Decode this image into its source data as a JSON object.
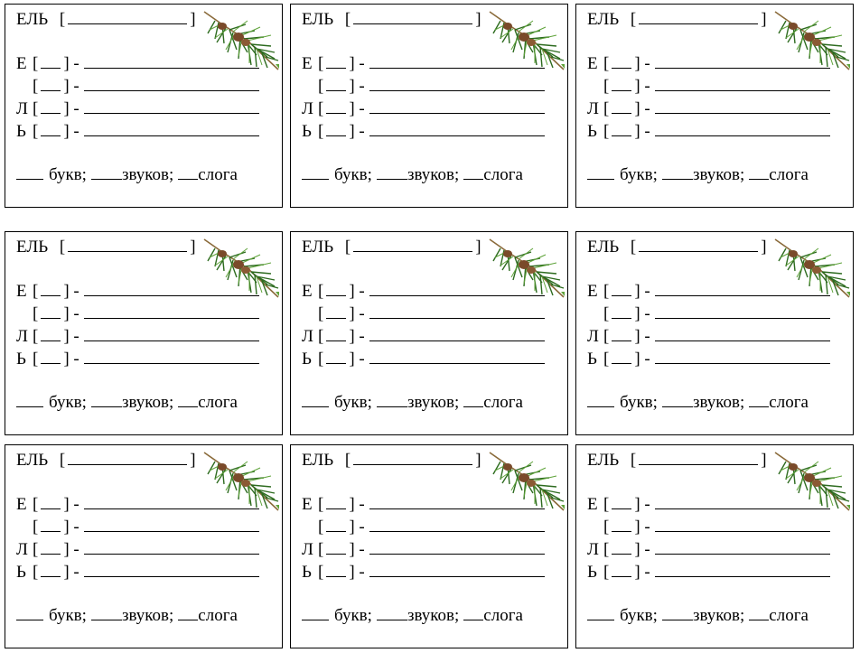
{
  "card": {
    "word": "ЕЛЬ",
    "bracket_open": "[",
    "bracket_close": "]",
    "letters": [
      "Е",
      "",
      "Л",
      "Ь"
    ],
    "sound_open": "[",
    "sound_close": "]",
    "dash": "-",
    "letters_label": "букв;",
    "sounds_label": "звуков;",
    "syllables_label": "слога"
  },
  "colors": {
    "needle_dark": "#2d6b1f",
    "needle_light": "#5fa33a",
    "cone": "#7a4a2a",
    "twig": "#8a6a3a"
  },
  "icons": [
    "pine-branch-icon"
  ]
}
